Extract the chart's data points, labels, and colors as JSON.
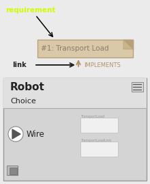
{
  "bg_color": "#ebebeb",
  "requirement_label": "requirement",
  "requirement_color": "#ccff00",
  "req_box_text": "#1: Transport Load",
  "req_box_bg": "#d9c9a8",
  "req_box_border": "#b8a07a",
  "implements_text": "IMPLEMENTS",
  "implements_color": "#b8936a",
  "link_text": "link",
  "link_color": "#222222",
  "robot_title": "Robot",
  "robot_subtitle": "Choice",
  "robot_title_color": "#222222",
  "wire_text": "Wire",
  "wire_color": "#222222",
  "panel_bg": "#d4d4d4",
  "panel_header_bg": "#e0e0e0",
  "inner_box_bg": "#f0f0f0",
  "inner_box_border": "#bbbbbb",
  "separator_color": "#aaaaaa"
}
